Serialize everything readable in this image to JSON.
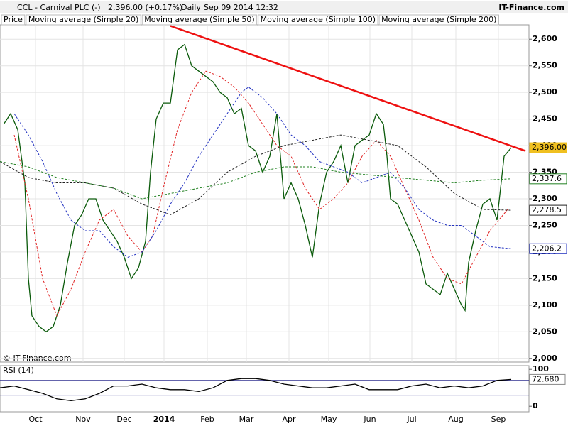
{
  "header": {
    "title": "CCL - Carnival PLC (-)",
    "price_text": "2,396.00 (+0.17%)",
    "period": "Daily",
    "date": "Sep 09 2014 12:32",
    "source": "IT-Finance.com"
  },
  "chart_data": [
    {
      "type": "line",
      "copyright": "© IT-Finance.com",
      "grid": true,
      "xlim": [
        0,
        745
      ],
      "ylim": [
        1993,
        2627
      ],
      "xticks": [
        {
          "value": 50,
          "label": "Oct"
        },
        {
          "value": 117,
          "label": "Nov"
        },
        {
          "value": 175,
          "label": "Dec"
        },
        {
          "value": 231,
          "label": "2014"
        },
        {
          "value": 292,
          "label": "Feb"
        },
        {
          "value": 347,
          "label": "Mar"
        },
        {
          "value": 407,
          "label": "Apr"
        },
        {
          "value": 463,
          "label": "May"
        },
        {
          "value": 521,
          "label": "Jun"
        },
        {
          "value": 580,
          "label": "Jul"
        },
        {
          "value": 642,
          "label": "Aug"
        },
        {
          "value": 702,
          "label": "Sep"
        }
      ],
      "yticks": [
        {
          "value": 2000,
          "label": "2,000"
        },
        {
          "value": 2050,
          "label": "2,050"
        },
        {
          "value": 2100,
          "label": "2,100"
        },
        {
          "value": 2150,
          "label": "2,150"
        },
        {
          "value": 2200,
          "label": "2,200"
        },
        {
          "value": 2250,
          "label": "2,250"
        },
        {
          "value": 2300,
          "label": "2,300"
        },
        {
          "value": 2350,
          "label": "2,350"
        },
        {
          "value": 2400,
          "label": "2,400"
        },
        {
          "value": 2450,
          "label": "2,450"
        },
        {
          "value": 2500,
          "label": "2,500"
        },
        {
          "value": 2550,
          "label": "2,550"
        },
        {
          "value": 2600,
          "label": "2,600"
        }
      ],
      "series": [
        {
          "name": "Price",
          "color": "#0a5a0a",
          "dash": false,
          "x": [
            5,
            15,
            25,
            35,
            40,
            45,
            55,
            65,
            75,
            85,
            95,
            105,
            115,
            125,
            135,
            145,
            155,
            165,
            175,
            185,
            195,
            205,
            212,
            220,
            230,
            240,
            250,
            260,
            270,
            280,
            290,
            300,
            310,
            320,
            330,
            340,
            350,
            360,
            370,
            380,
            390,
            400,
            410,
            420,
            430,
            440,
            450,
            460,
            470,
            480,
            490,
            500,
            510,
            520,
            530,
            540,
            545,
            550,
            560,
            570,
            580,
            590,
            600,
            610,
            620,
            630,
            640,
            650,
            655,
            660,
            670,
            680,
            690,
            700,
            710,
            720
          ],
          "values": [
            2440,
            2460,
            2430,
            2330,
            2150,
            2080,
            2060,
            2050,
            2060,
            2100,
            2180,
            2250,
            2270,
            2300,
            2300,
            2260,
            2240,
            2220,
            2190,
            2150,
            2170,
            2220,
            2350,
            2450,
            2480,
            2480,
            2580,
            2590,
            2550,
            2540,
            2530,
            2520,
            2500,
            2490,
            2460,
            2470,
            2400,
            2390,
            2350,
            2380,
            2460,
            2300,
            2330,
            2300,
            2250,
            2190,
            2290,
            2350,
            2370,
            2400,
            2330,
            2400,
            2410,
            2420,
            2460,
            2440,
            2380,
            2300,
            2290,
            2260,
            2230,
            2200,
            2140,
            2130,
            2120,
            2160,
            2130,
            2100,
            2090,
            2180,
            2240,
            2290,
            2300,
            2260,
            2380,
            2396
          ]
        },
        {
          "name": "Moving average (Simple 20)",
          "color": "#e02020",
          "dash": true,
          "x": [
            20,
            40,
            60,
            80,
            100,
            120,
            140,
            160,
            180,
            200,
            215,
            230,
            250,
            270,
            290,
            310,
            330,
            350,
            370,
            390,
            410,
            430,
            450,
            470,
            490,
            510,
            530,
            550,
            570,
            590,
            610,
            630,
            650,
            670,
            690,
            715
          ],
          "values": [
            2420,
            2300,
            2150,
            2080,
            2130,
            2200,
            2260,
            2280,
            2230,
            2200,
            2230,
            2320,
            2430,
            2500,
            2540,
            2530,
            2510,
            2480,
            2440,
            2400,
            2380,
            2320,
            2280,
            2300,
            2330,
            2380,
            2410,
            2380,
            2320,
            2260,
            2190,
            2150,
            2140,
            2190,
            2240,
            2280
          ]
        },
        {
          "name": "Moving average (Simple 50)",
          "color": "#2030c0",
          "dash": true,
          "x": [
            20,
            40,
            60,
            80,
            100,
            120,
            140,
            160,
            180,
            200,
            220,
            240,
            260,
            280,
            300,
            320,
            340,
            350,
            370,
            390,
            410,
            430,
            450,
            470,
            490,
            510,
            530,
            550,
            570,
            590,
            610,
            630,
            650,
            670,
            690,
            720
          ],
          "values": [
            2460,
            2420,
            2370,
            2310,
            2260,
            2240,
            2240,
            2210,
            2190,
            2200,
            2240,
            2290,
            2330,
            2380,
            2420,
            2460,
            2500,
            2510,
            2490,
            2460,
            2420,
            2400,
            2370,
            2360,
            2350,
            2330,
            2340,
            2350,
            2320,
            2280,
            2260,
            2250,
            2250,
            2230,
            2210,
            2206.2
          ]
        },
        {
          "name": "Moving average (Simple 100)",
          "color": "#202020",
          "dash": true,
          "x": [
            0,
            40,
            80,
            120,
            160,
            200,
            240,
            280,
            320,
            360,
            400,
            440,
            480,
            520,
            560,
            600,
            640,
            680,
            720
          ],
          "values": [
            2370,
            2340,
            2330,
            2330,
            2320,
            2290,
            2270,
            2300,
            2350,
            2380,
            2400,
            2410,
            2420,
            2410,
            2400,
            2360,
            2310,
            2280,
            2278.5
          ]
        },
        {
          "name": "Moving average (Simple 200)",
          "color": "#208020",
          "dash": true,
          "x": [
            0,
            40,
            80,
            120,
            160,
            200,
            240,
            280,
            320,
            360,
            400,
            440,
            480,
            520,
            560,
            600,
            640,
            680,
            720
          ],
          "values": [
            2370,
            2360,
            2340,
            2330,
            2320,
            2300,
            2310,
            2320,
            2330,
            2350,
            2360,
            2360,
            2350,
            2345,
            2340,
            2335,
            2330,
            2335,
            2337.6
          ]
        }
      ],
      "trendline": {
        "color": "#ee1111",
        "x": [
          240,
          740
        ],
        "values": [
          2625,
          2390
        ]
      },
      "last_labels": [
        {
          "value": 2396,
          "label": "2,396.00",
          "color": "#f0c020"
        },
        {
          "value": 2337.6,
          "label": "2,337.6",
          "color": "#208020"
        },
        {
          "value": 2278.5,
          "label": "2,278.5",
          "color": "#202020"
        },
        {
          "value": 2206.2,
          "label": "2,206.2",
          "color": "#2030c0"
        }
      ]
    },
    {
      "type": "line",
      "title": "RSI (14)",
      "xlim": [
        0,
        745
      ],
      "ylim": [
        -15,
        110
      ],
      "yticks": [
        0,
        100
      ],
      "levels": [
        30,
        70
      ],
      "grid": false,
      "series": [
        {
          "name": "RSI",
          "color": "#000000",
          "dash": false,
          "x": [
            0,
            20,
            40,
            60,
            80,
            100,
            120,
            140,
            160,
            180,
            200,
            220,
            240,
            260,
            280,
            300,
            320,
            340,
            360,
            380,
            400,
            420,
            440,
            460,
            480,
            500,
            520,
            540,
            560,
            580,
            600,
            620,
            640,
            660,
            680,
            700,
            720
          ],
          "values": [
            50,
            55,
            45,
            35,
            20,
            15,
            20,
            35,
            55,
            55,
            60,
            50,
            45,
            45,
            40,
            50,
            70,
            75,
            75,
            70,
            60,
            55,
            50,
            50,
            55,
            60,
            45,
            45,
            45,
            55,
            60,
            50,
            55,
            50,
            55,
            70,
            72.68
          ],
          "value_labels": [
            null,
            null,
            null,
            null,
            null,
            null,
            null,
            null,
            null,
            null,
            null,
            null,
            null,
            null,
            null,
            null,
            null,
            null,
            null,
            null,
            null,
            null,
            null,
            null,
            null,
            null,
            null,
            null,
            null,
            null,
            null,
            null,
            null,
            null,
            null,
            null,
            "72.680"
          ]
        }
      ]
    }
  ]
}
